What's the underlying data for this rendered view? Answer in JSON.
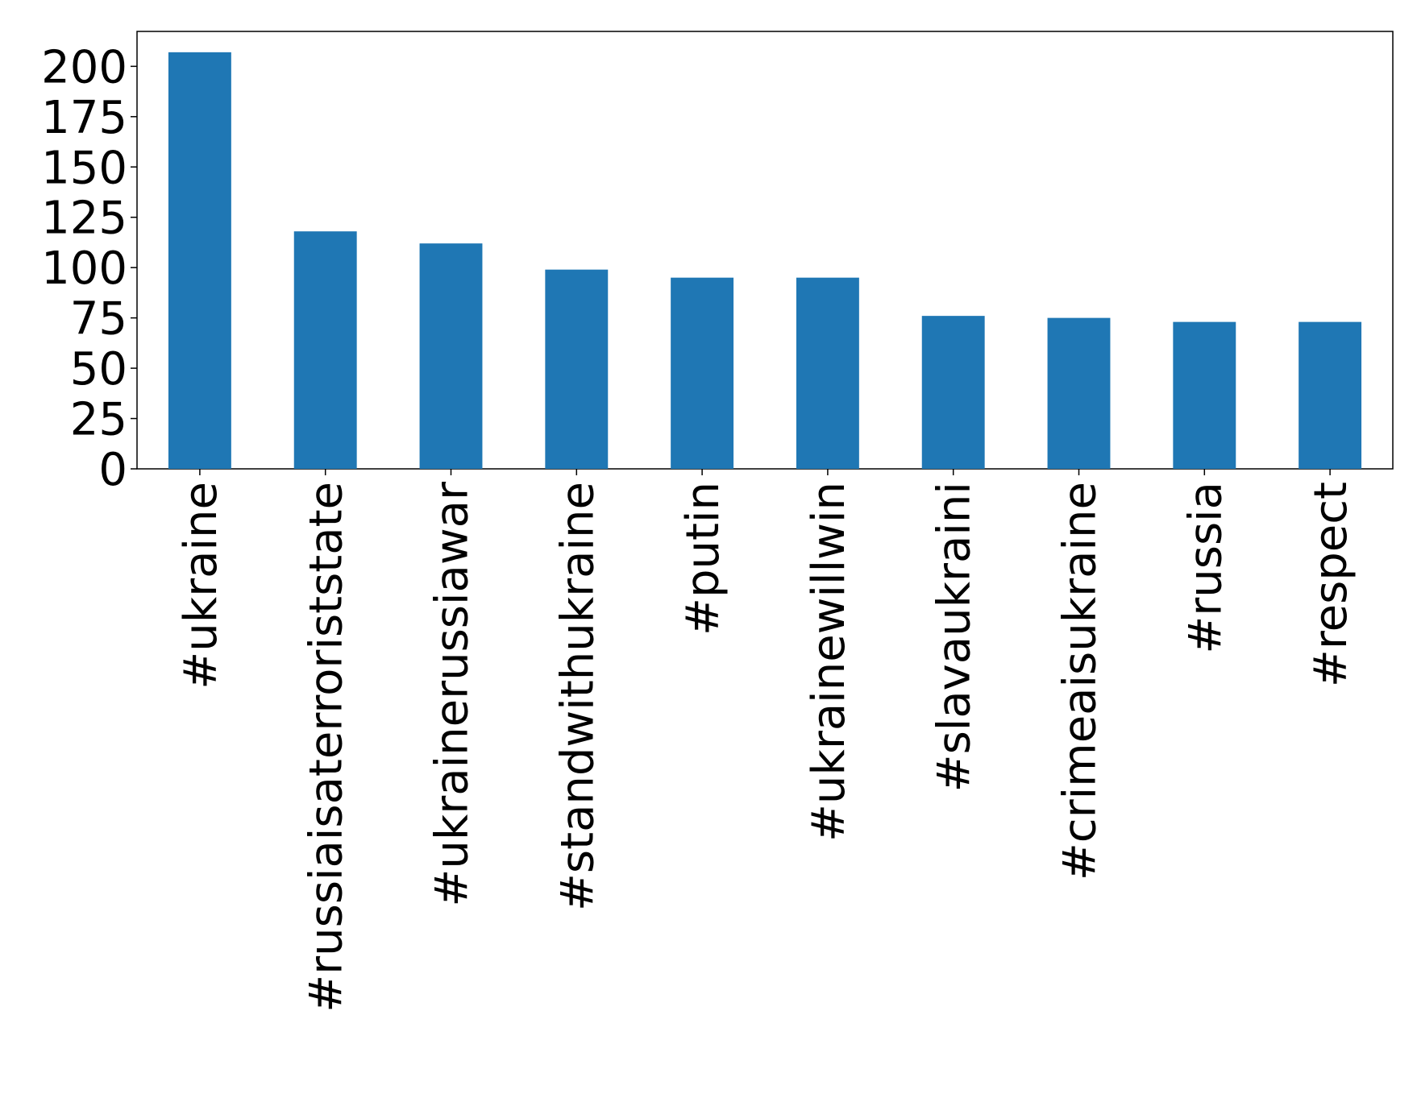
{
  "chart_data": {
    "type": "bar",
    "categories": [
      "#ukraine",
      "#russiaisaterroriststate",
      "#ukrainerussiawar",
      "#standwithukraine",
      "#putin",
      "#ukrainewillwin",
      "#slavaukraini",
      "#crimeaisukraine",
      "#russia",
      "#respect"
    ],
    "values": [
      207,
      118,
      112,
      99,
      95,
      95,
      76,
      75,
      73,
      73
    ],
    "color": "#1f77b4",
    "ylim": [
      0,
      217.35
    ],
    "yticks": [
      0,
      25,
      50,
      75,
      100,
      125,
      150,
      175,
      200
    ],
    "grid": false
  }
}
